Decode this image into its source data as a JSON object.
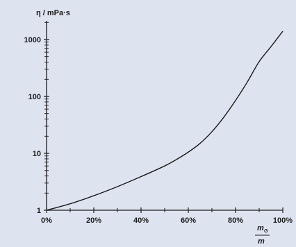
{
  "chart_data": {
    "type": "line",
    "ylabel": "η / mPa·s",
    "xlabel": {
      "numerator": "m",
      "numerator_sub": "G",
      "denominator": "m"
    },
    "x_scale": "linear",
    "y_scale": "log",
    "xlim": [
      0,
      100
    ],
    "ylim": [
      1,
      2000
    ],
    "x_ticks": [
      0,
      20,
      40,
      60,
      80,
      100
    ],
    "x_tick_labels": [
      "0%",
      "20%",
      "40%",
      "60%",
      "80%",
      "100%"
    ],
    "x_minor_ticks": [
      10,
      30,
      50,
      70,
      90
    ],
    "y_ticks": [
      1,
      10,
      100,
      1000
    ],
    "y_tick_labels": [
      "1",
      "10",
      "100",
      "1000"
    ],
    "grid": false,
    "series": [
      {
        "x": [
          0,
          10,
          20,
          30,
          40,
          50,
          55,
          60,
          65,
          70,
          75,
          80,
          85,
          90,
          95,
          100
        ],
        "y": [
          1.0,
          1.3,
          1.8,
          2.6,
          3.9,
          6.0,
          7.8,
          10.5,
          15,
          24,
          43,
          85,
          180,
          410,
          750,
          1400
        ]
      }
    ],
    "colors": {
      "background": "#dde3ef",
      "line": "#1a1a1a",
      "axis": "#1a1a1a"
    }
  }
}
